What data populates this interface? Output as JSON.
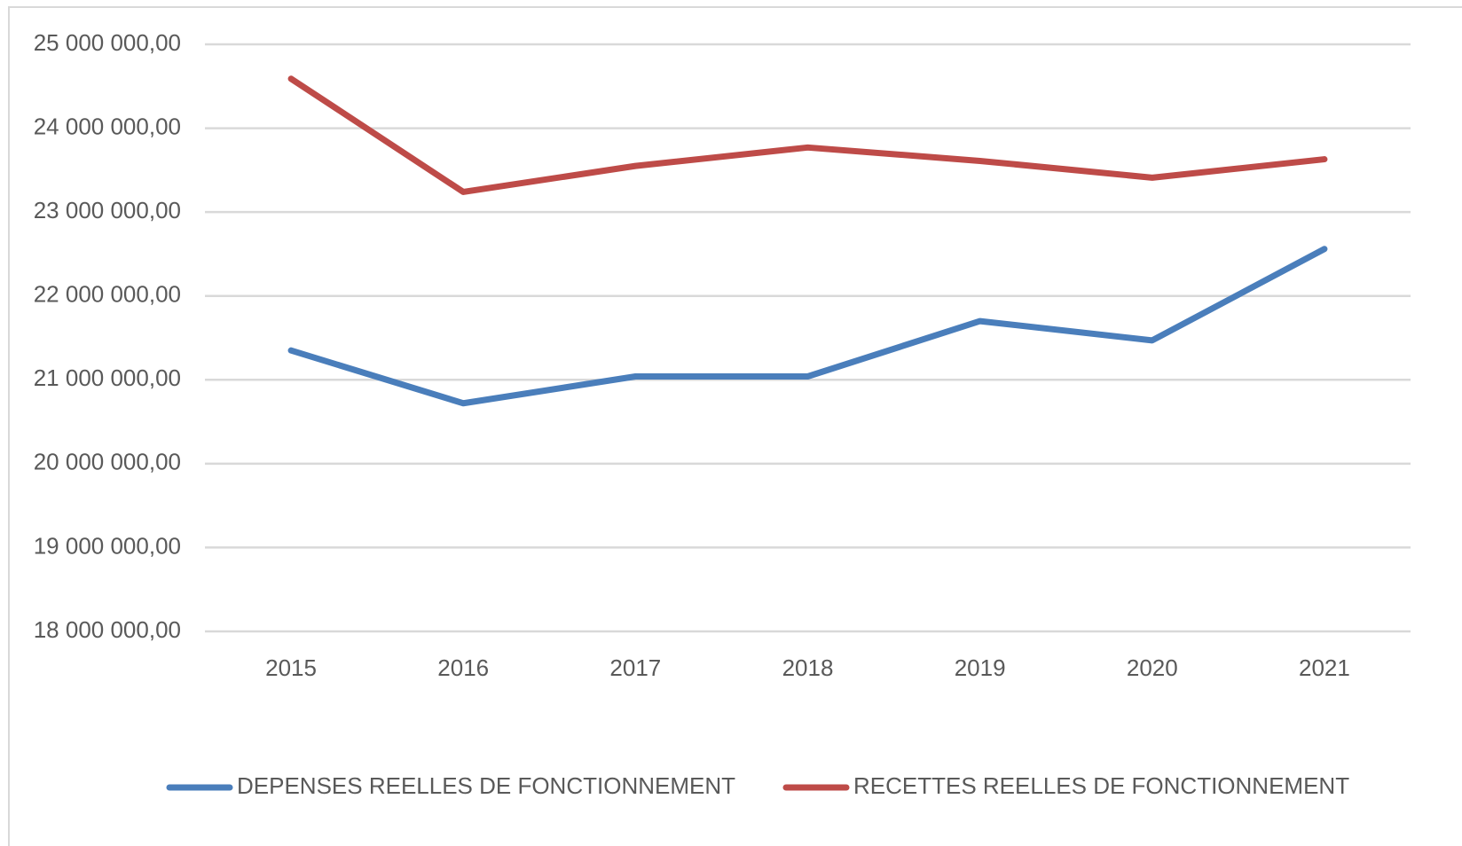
{
  "chart_data": {
    "type": "line",
    "categories": [
      "2015",
      "2016",
      "2017",
      "2018",
      "2019",
      "2020",
      "2021"
    ],
    "series": [
      {
        "name": "DEPENSES REELLES DE FONCTIONNEMENT",
        "color": "#4a7ebb",
        "values": [
          21350000,
          20720000,
          21040000,
          21040000,
          21700000,
          21470000,
          22560000
        ]
      },
      {
        "name": "RECETTES REELLES DE FONCTIONNEMENT",
        "color": "#be4b48",
        "values": [
          24590000,
          23240000,
          23550000,
          23770000,
          23610000,
          23410000,
          23630000
        ]
      }
    ],
    "ylim": [
      18000000,
      25000000
    ],
    "yticks": [
      {
        "value": 18000000,
        "label": "18 000 000,00"
      },
      {
        "value": 19000000,
        "label": "19 000 000,00"
      },
      {
        "value": 20000000,
        "label": "20 000 000,00"
      },
      {
        "value": 21000000,
        "label": "21 000 000,00"
      },
      {
        "value": 22000000,
        "label": "22 000 000,00"
      },
      {
        "value": 23000000,
        "label": "23 000 000,00"
      },
      {
        "value": 24000000,
        "label": "24 000 000,00"
      },
      {
        "value": 25000000,
        "label": "25 000 000,00"
      }
    ],
    "grid": true,
    "legend": "bottom"
  }
}
